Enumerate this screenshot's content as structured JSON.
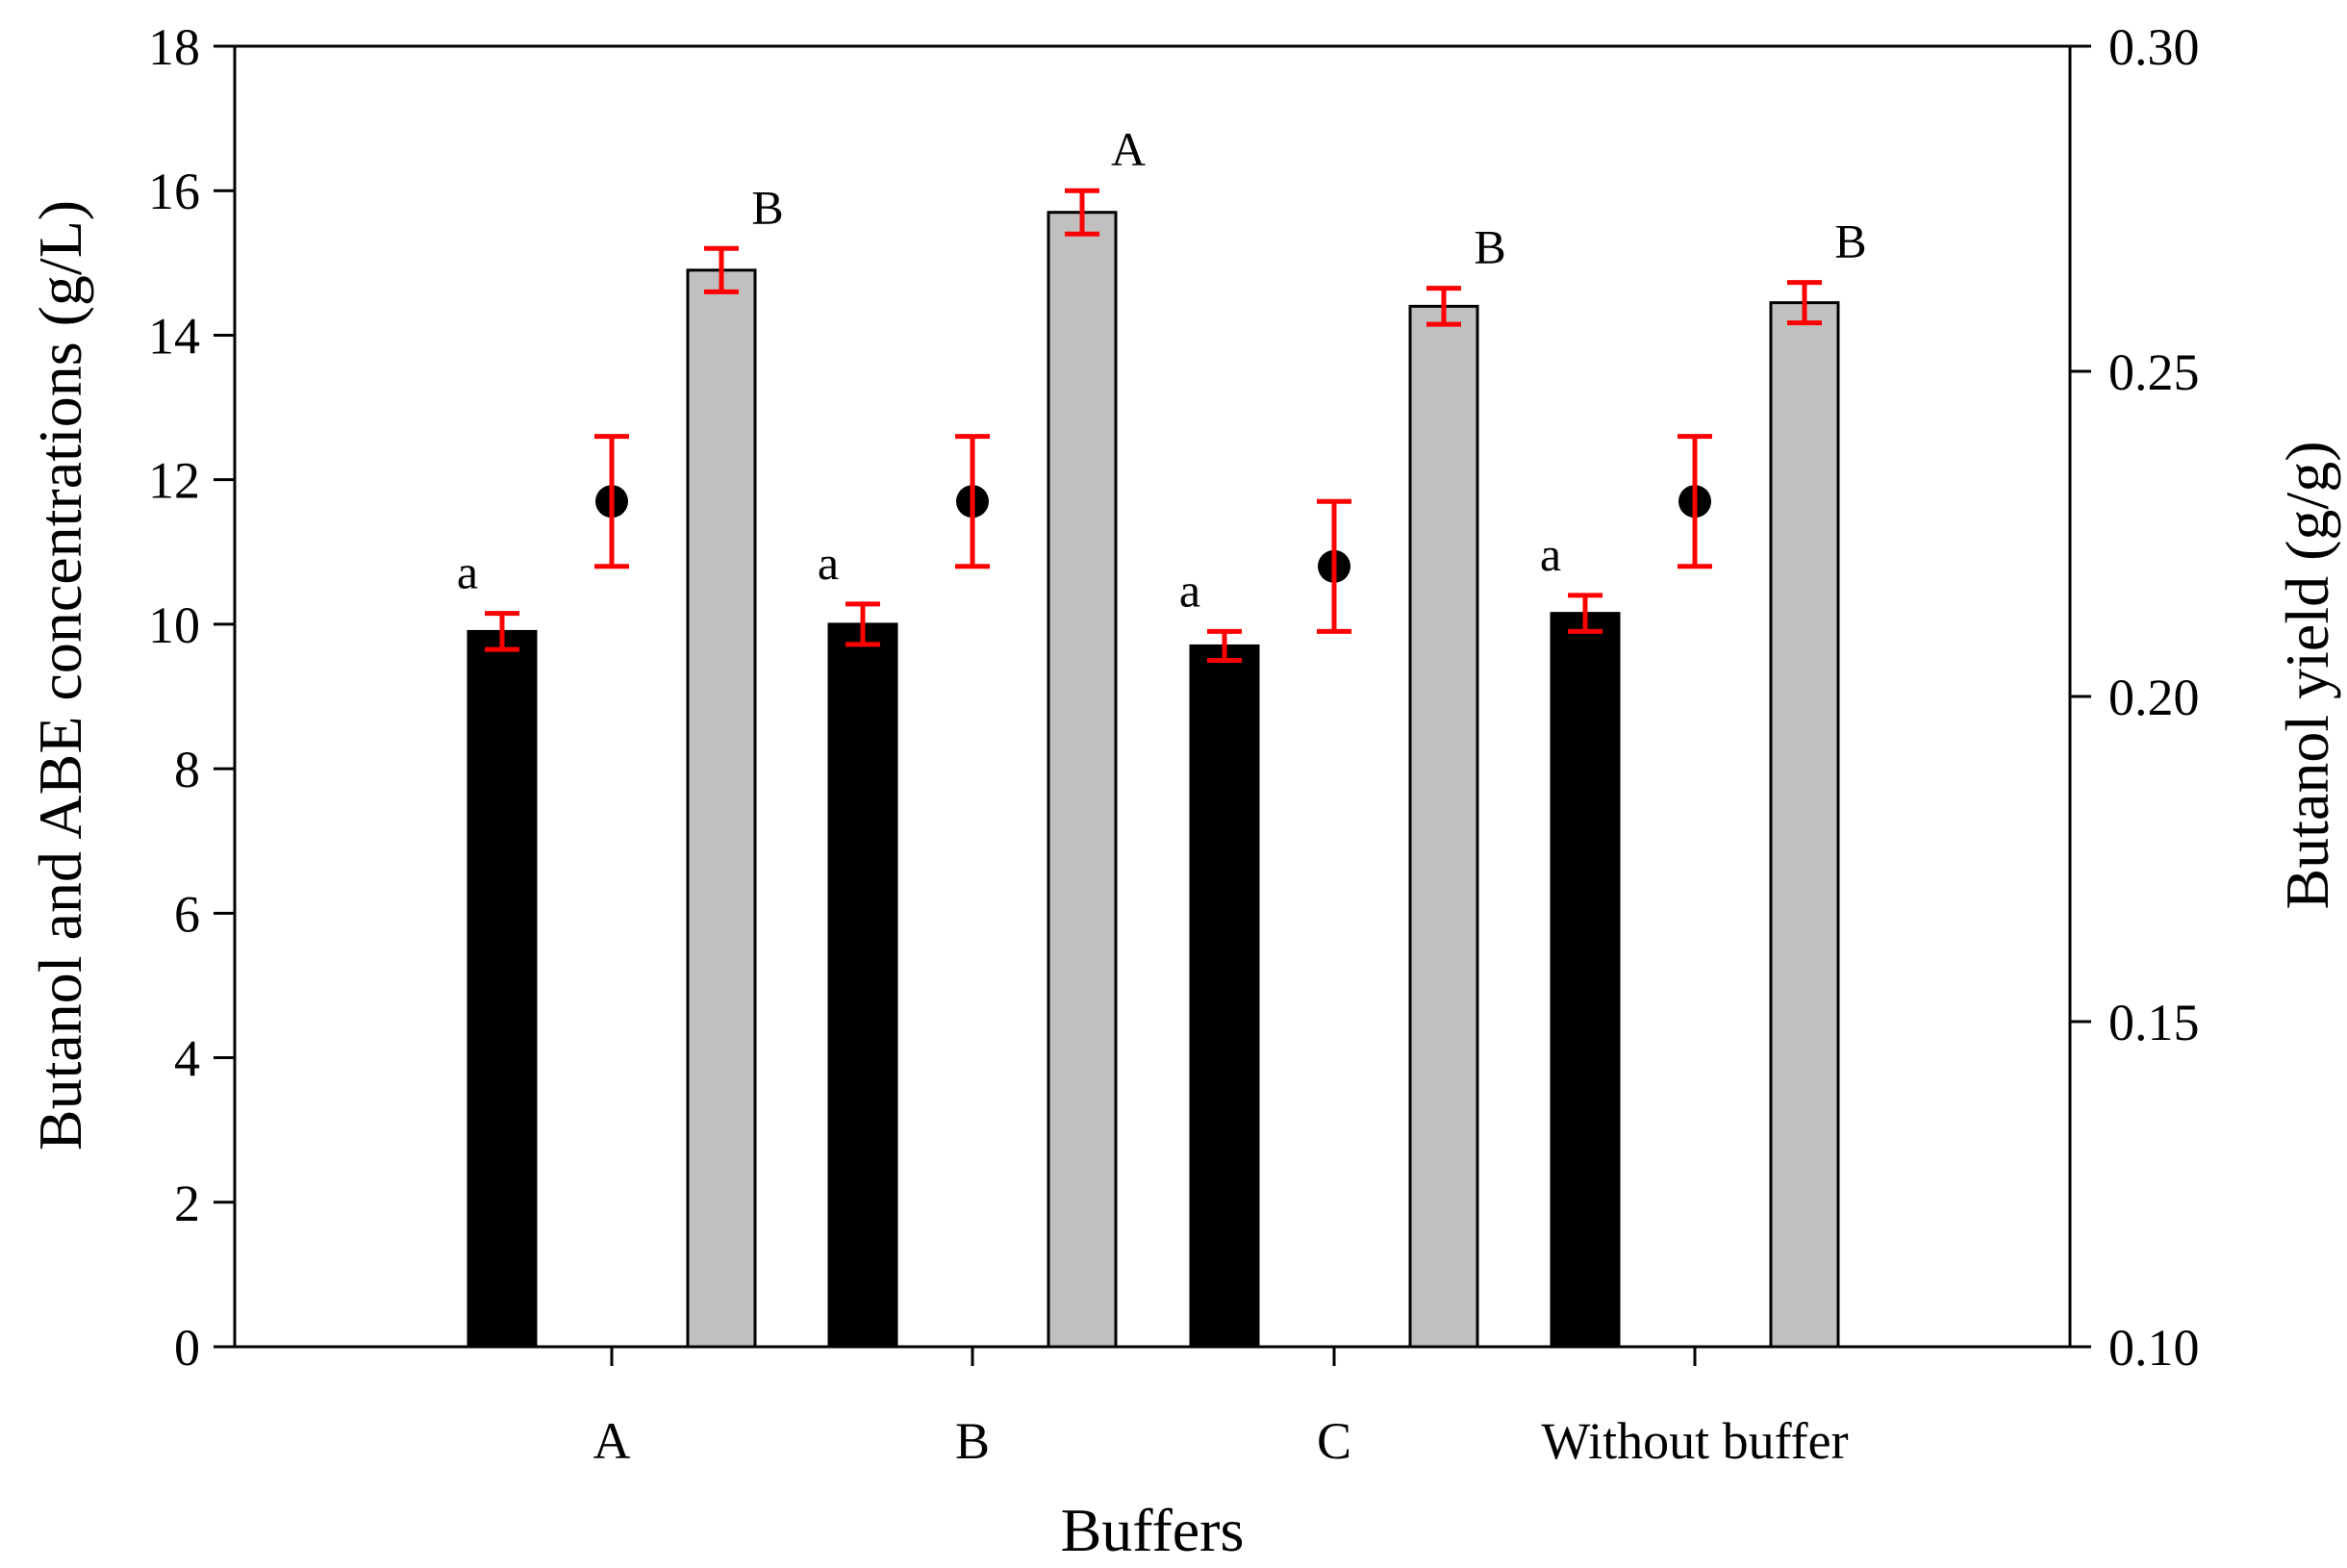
{
  "chart_data": {
    "type": "bar",
    "categories": [
      "A",
      "B",
      "C",
      "Without buffer"
    ],
    "xlabel": "Buffers",
    "ylabel": "Butanol and ABE concentrations (g/L)",
    "y2label": "Butanol yield (g/g)",
    "ylim": [
      0,
      18
    ],
    "y2lim": [
      0.1,
      0.3
    ],
    "yticks": [
      "0",
      "2",
      "4",
      "6",
      "8",
      "10",
      "12",
      "14",
      "16",
      "18"
    ],
    "y2ticks": [
      "0.10",
      "0.15",
      "0.20",
      "0.25",
      "0.30"
    ],
    "series": [
      {
        "axis": "left",
        "kind": "bar",
        "color": "#000000",
        "values": [
          9.9,
          10.0,
          9.7,
          10.15
        ],
        "errors": [
          0.25,
          0.28,
          0.2,
          0.25
        ],
        "labels": [
          "a",
          "a",
          "a",
          "a"
        ]
      },
      {
        "axis": "right",
        "kind": "point",
        "color": "#000000",
        "values": [
          0.23,
          0.23,
          0.22,
          0.23
        ],
        "errors": [
          0.01,
          0.01,
          0.01,
          0.01
        ]
      },
      {
        "axis": "left",
        "kind": "bar",
        "color": "#c0c0c0",
        "values": [
          14.9,
          15.7,
          14.4,
          14.45
        ],
        "errors": [
          0.3,
          0.3,
          0.25,
          0.28
        ],
        "labels": [
          "B",
          "A",
          "B",
          "B"
        ]
      }
    ],
    "error_bar_color": "#ff0000",
    "grid": false,
    "legend": "none"
  }
}
